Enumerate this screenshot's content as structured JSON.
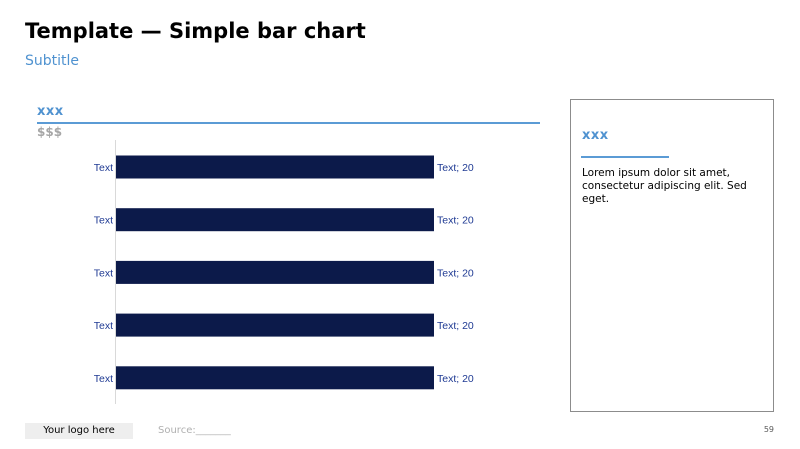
{
  "title": "Template — Simple bar chart",
  "subtitle": "Subtitle",
  "chart_header": {
    "label": "xxx",
    "unit": "$$$"
  },
  "chart_data": {
    "type": "bar",
    "orientation": "horizontal",
    "categories": [
      "Text",
      "Text",
      "Text",
      "Text",
      "Text"
    ],
    "values": [
      20,
      20,
      20,
      20,
      20
    ],
    "data_labels": [
      "Text; 20",
      "Text; 20",
      "Text; 20",
      "Text; 20",
      "Text; 20"
    ],
    "xlim": [
      0,
      20
    ],
    "grid": false,
    "legend": "none",
    "bar_color": "#0c1a4a",
    "label_color": "#1f3a93"
  },
  "side_panel": {
    "header": "xxx",
    "body": "Lorem ipsum dolor sit amet, consectetur adipiscing elit. Sed eget."
  },
  "footer": {
    "logo": "Your logo here",
    "source": "Source:_______",
    "page_number": "59"
  }
}
